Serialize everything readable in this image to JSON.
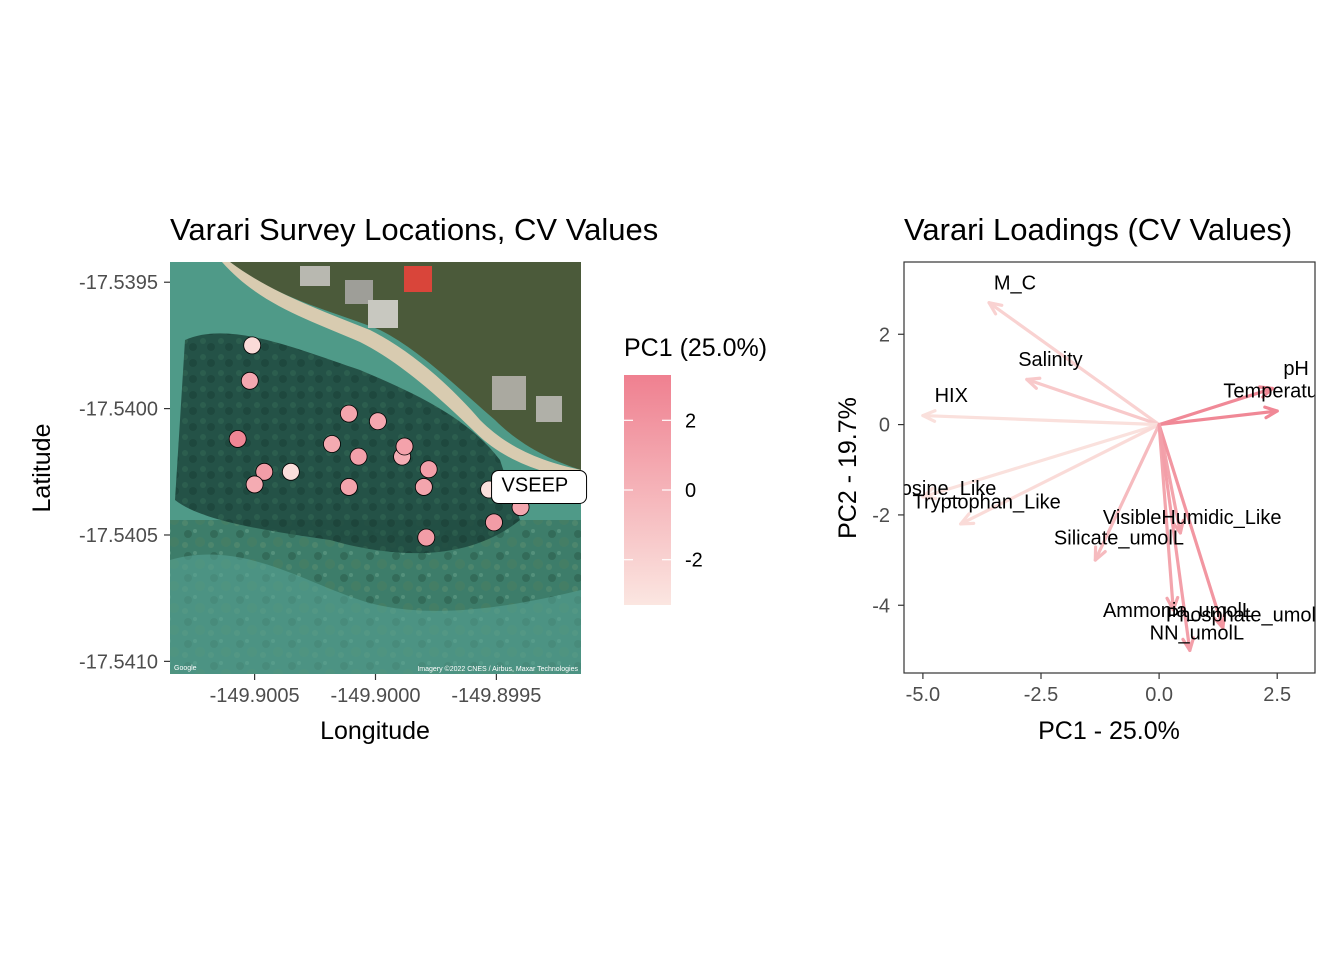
{
  "colors": {
    "gradient_low": "#fbe6e1",
    "gradient_high": "#ef8090",
    "point_outline": "#000000",
    "panel_border": "#333333"
  },
  "map_background": {
    "attribution_left": "Google",
    "attribution_right": "Imagery ©2022 CNES / Airbus, Maxar Technologies"
  },
  "chart_data": [
    {
      "type": "scatter",
      "title": "Varari Survey Locations, CV Values",
      "xlabel": "Longitude",
      "ylabel": "Latitude",
      "xlim": [
        -149.90085,
        -149.89915
      ],
      "ylim": [
        -17.54105,
        -17.53942
      ],
      "x_ticks": [
        -149.9005,
        -149.9,
        -149.8995
      ],
      "x_tick_labels": [
        "-149.9005",
        "-149.9000",
        "-149.8995"
      ],
      "y_ticks": [
        -17.5395,
        -17.54,
        -17.5405,
        -17.541
      ],
      "y_tick_labels": [
        "-17.5395",
        "-17.5400",
        "-17.5405",
        "-17.5410"
      ],
      "grid": false,
      "legend": {
        "title": "PC1 (25.0%)",
        "position": "right",
        "range": [
          -3.3,
          3.3
        ],
        "ticks": [
          2,
          0,
          -2
        ],
        "tick_labels": [
          "2",
          "0",
          "-2"
        ]
      },
      "color_by": "PC1",
      "series": [
        {
          "points": [
            {
              "lon": -149.90051,
              "lat": -17.53975,
              "pc1": -2.6
            },
            {
              "lon": -149.90052,
              "lat": -17.53989,
              "pc1": 0.7
            },
            {
              "lon": -149.90057,
              "lat": -17.54012,
              "pc1": 2.9
            },
            {
              "lon": -149.90046,
              "lat": -17.54025,
              "pc1": 1.4
            },
            {
              "lon": -149.9005,
              "lat": -17.5403,
              "pc1": 0.5
            },
            {
              "lon": -149.90035,
              "lat": -17.54025,
              "pc1": -2.8
            },
            {
              "lon": -149.90018,
              "lat": -17.54014,
              "pc1": 0.6
            },
            {
              "lon": -149.90011,
              "lat": -17.54002,
              "pc1": 0.9
            },
            {
              "lon": -149.90007,
              "lat": -17.54019,
              "pc1": 1.2
            },
            {
              "lon": -149.90011,
              "lat": -17.54031,
              "pc1": 1.0
            },
            {
              "lon": -149.89999,
              "lat": -17.54005,
              "pc1": 0.8
            },
            {
              "lon": -149.89989,
              "lat": -17.54019,
              "pc1": 0.4
            },
            {
              "lon": -149.89988,
              "lat": -17.54015,
              "pc1": 1.1
            },
            {
              "lon": -149.8998,
              "lat": -17.54031,
              "pc1": 0.9
            },
            {
              "lon": -149.89978,
              "lat": -17.54024,
              "pc1": 1.3
            },
            {
              "lon": -149.89979,
              "lat": -17.54051,
              "pc1": 1.4
            },
            {
              "lon": -149.89953,
              "lat": -17.54032,
              "pc1": -3.0
            },
            {
              "lon": -149.89951,
              "lat": -17.54045,
              "pc1": 1.5
            },
            {
              "lon": -149.8994,
              "lat": -17.54039,
              "pc1": 0.8
            }
          ]
        }
      ],
      "annotations": [
        {
          "text": "VSEEP",
          "lon": -149.8994,
          "lat": -17.54032
        }
      ]
    },
    {
      "type": "vector",
      "title": "Varari Loadings (CV Values)",
      "xlabel": "PC1 - 25.0%",
      "ylabel": "PC2 - 19.7%",
      "xlim": [
        -5.4,
        3.3
      ],
      "ylim": [
        -5.5,
        3.6
      ],
      "x_ticks": [
        -5,
        -2.5,
        0,
        2.5
      ],
      "x_tick_labels": [
        "-5.0",
        "-2.5",
        "0.0",
        "2.5"
      ],
      "y_ticks": [
        2,
        0,
        -2,
        -4
      ],
      "y_tick_labels": [
        "2",
        "0",
        "-2",
        "-4"
      ],
      "grid": false,
      "origin": [
        0,
        0
      ],
      "color_by": "PC1",
      "loadings": [
        {
          "name": "M_C",
          "x": -3.6,
          "y": 2.7,
          "label_x": -3.05,
          "label_y": 3.15,
          "color_value": -2.0
        },
        {
          "name": "Salinity",
          "x": -2.8,
          "y": 1.0,
          "label_x": -2.3,
          "label_y": 1.45,
          "color_value": -1.4
        },
        {
          "name": "HIX",
          "x": -5.0,
          "y": 0.2,
          "label_x": -4.4,
          "label_y": 0.65,
          "color_value": -2.9
        },
        {
          "name": "pH",
          "x": 2.4,
          "y": 0.8,
          "label_x": 2.9,
          "label_y": 1.25,
          "color_value": 2.7
        },
        {
          "name": "Temperature",
          "x": 2.5,
          "y": 0.3,
          "label_x": 2.55,
          "label_y": 0.75,
          "color_value": 2.8
        },
        {
          "name": "Tyrosine_Like",
          "x": -5.0,
          "y": -1.6,
          "label_x": -4.75,
          "label_y": -1.4,
          "color_value": -3.0
        },
        {
          "name": "Tryptophan_Like",
          "x": -4.2,
          "y": -2.2,
          "label_x": -3.65,
          "label_y": -1.7,
          "color_value": -2.6
        },
        {
          "name": "VisibleHumidic_Like",
          "x": 0.45,
          "y": -2.4,
          "label_x": 0.7,
          "label_y": -2.05,
          "color_value": 1.0
        },
        {
          "name": "Silicate_umolL",
          "x": -1.35,
          "y": -3.0,
          "label_x": -0.85,
          "label_y": -2.5,
          "color_value": -0.5
        },
        {
          "name": "Ammonia_umolL",
          "x": 0.3,
          "y": -4.1,
          "label_x": 0.4,
          "label_y": -4.1,
          "color_value": 0.9
        },
        {
          "name": "Phosphate_umolL",
          "x": 1.35,
          "y": -4.5,
          "label_x": 1.85,
          "label_y": -4.2,
          "color_value": 1.9
        },
        {
          "name": "NN_umolL",
          "x": 0.65,
          "y": -5.0,
          "label_x": 0.8,
          "label_y": -4.6,
          "color_value": 1.3
        }
      ]
    }
  ]
}
